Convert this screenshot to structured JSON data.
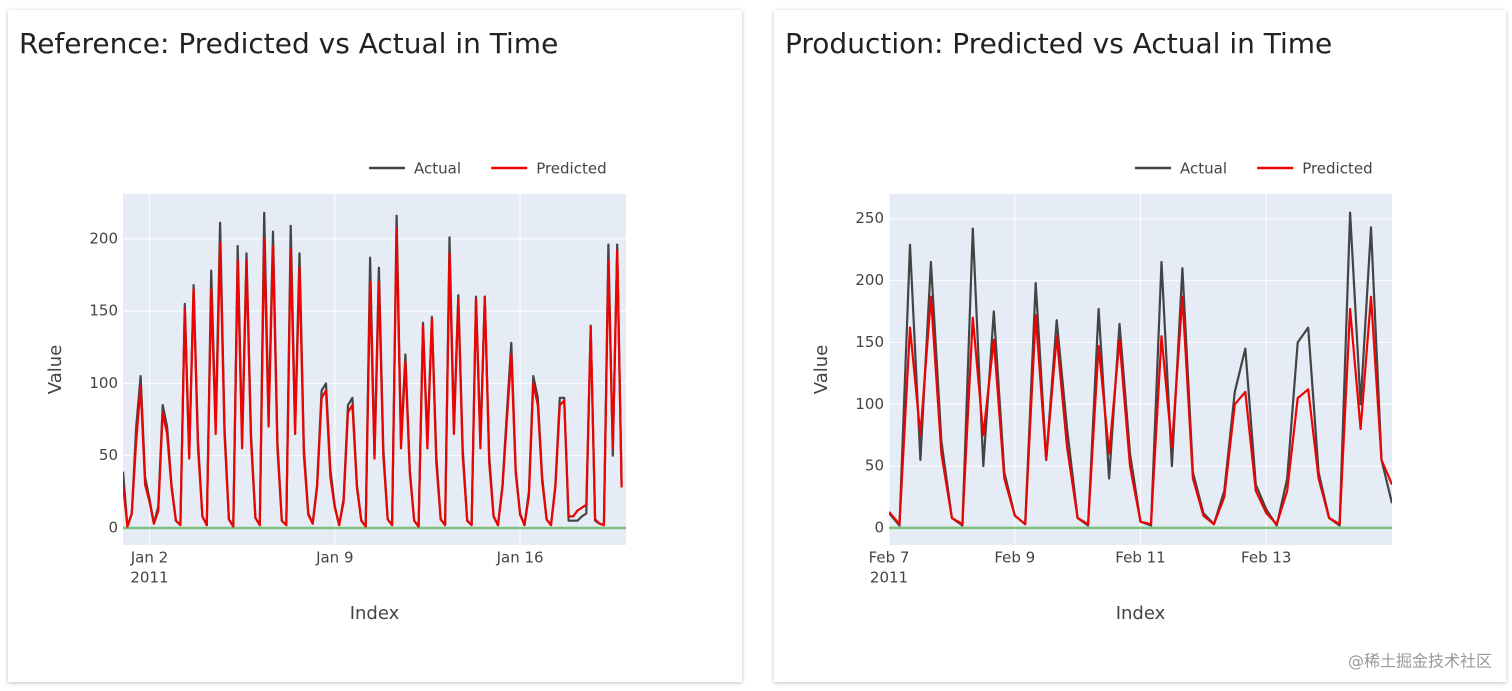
{
  "chart_data": [
    {
      "type": "line",
      "title": "Reference: Predicted vs Actual in Time",
      "x_label": "Index",
      "y_label": "Value",
      "x": [
        "2011-01-01 00:00",
        "2011-01-01 04:00",
        "2011-01-01 08:00",
        "2011-01-01 12:00",
        "2011-01-01 16:00",
        "2011-01-01 20:00",
        "2011-01-02 00:00",
        "2011-01-02 04:00",
        "2011-01-02 08:00",
        "2011-01-02 12:00",
        "2011-01-02 16:00",
        "2011-01-02 20:00",
        "2011-01-03 00:00",
        "2011-01-03 04:00",
        "2011-01-03 08:00",
        "2011-01-03 12:00",
        "2011-01-03 16:00",
        "2011-01-03 20:00",
        "2011-01-04 00:00",
        "2011-01-04 04:00",
        "2011-01-04 08:00",
        "2011-01-04 12:00",
        "2011-01-04 16:00",
        "2011-01-04 20:00",
        "2011-01-05 00:00",
        "2011-01-05 04:00",
        "2011-01-05 08:00",
        "2011-01-05 12:00",
        "2011-01-05 16:00",
        "2011-01-05 20:00",
        "2011-01-06 00:00",
        "2011-01-06 04:00",
        "2011-01-06 08:00",
        "2011-01-06 12:00",
        "2011-01-06 16:00",
        "2011-01-06 20:00",
        "2011-01-07 00:00",
        "2011-01-07 04:00",
        "2011-01-07 08:00",
        "2011-01-07 12:00",
        "2011-01-07 16:00",
        "2011-01-07 20:00",
        "2011-01-08 00:00",
        "2011-01-08 04:00",
        "2011-01-08 08:00",
        "2011-01-08 12:00",
        "2011-01-08 16:00",
        "2011-01-08 20:00",
        "2011-01-09 00:00",
        "2011-01-09 04:00",
        "2011-01-09 08:00",
        "2011-01-09 12:00",
        "2011-01-09 16:00",
        "2011-01-09 20:00",
        "2011-01-10 00:00",
        "2011-01-10 04:00",
        "2011-01-10 08:00",
        "2011-01-10 12:00",
        "2011-01-10 16:00",
        "2011-01-10 20:00",
        "2011-01-11 00:00",
        "2011-01-11 04:00",
        "2011-01-11 08:00",
        "2011-01-11 12:00",
        "2011-01-11 16:00",
        "2011-01-11 20:00",
        "2011-01-12 00:00",
        "2011-01-12 04:00",
        "2011-01-12 08:00",
        "2011-01-12 12:00",
        "2011-01-12 16:00",
        "2011-01-12 20:00",
        "2011-01-13 00:00",
        "2011-01-13 04:00",
        "2011-01-13 08:00",
        "2011-01-13 12:00",
        "2011-01-13 16:00",
        "2011-01-13 20:00",
        "2011-01-14 00:00",
        "2011-01-14 04:00",
        "2011-01-14 08:00",
        "2011-01-14 12:00",
        "2011-01-14 16:00",
        "2011-01-14 20:00",
        "2011-01-15 00:00",
        "2011-01-15 04:00",
        "2011-01-15 08:00",
        "2011-01-15 12:00",
        "2011-01-15 16:00",
        "2011-01-15 20:00",
        "2011-01-16 00:00",
        "2011-01-16 04:00",
        "2011-01-16 08:00",
        "2011-01-16 12:00",
        "2011-01-16 16:00",
        "2011-01-16 20:00",
        "2011-01-17 00:00",
        "2011-01-17 04:00",
        "2011-01-17 08:00",
        "2011-01-17 12:00",
        "2011-01-17 16:00",
        "2011-01-17 20:00",
        "2011-01-18 00:00",
        "2011-01-18 04:00",
        "2011-01-18 08:00",
        "2011-01-18 12:00",
        "2011-01-18 16:00",
        "2011-01-18 20:00",
        "2011-01-19 00:00",
        "2011-01-19 04:00",
        "2011-01-19 08:00",
        "2011-01-19 12:00",
        "2011-01-19 16:00",
        "2011-01-19 20:00"
      ],
      "series": [
        {
          "name": "Actual",
          "color": "#444444",
          "values": [
            39,
            1,
            10,
            70,
            105,
            35,
            20,
            3,
            15,
            85,
            70,
            30,
            5,
            2,
            155,
            50,
            168,
            60,
            8,
            2,
            178,
            70,
            211,
            70,
            6,
            1,
            195,
            60,
            190,
            65,
            7,
            2,
            218,
            75,
            205,
            60,
            5,
            2,
            209,
            70,
            190,
            55,
            10,
            3,
            30,
            95,
            100,
            40,
            15,
            2,
            20,
            85,
            90,
            30,
            5,
            1,
            187,
            50,
            180,
            55,
            6,
            2,
            216,
            60,
            120,
            40,
            5,
            1,
            142,
            60,
            146,
            50,
            6,
            2,
            201,
            70,
            161,
            55,
            5,
            2,
            160,
            60,
            160,
            50,
            8,
            2,
            30,
            80,
            128,
            40,
            10,
            2,
            25,
            105,
            90,
            35,
            6,
            2,
            30,
            90,
            90,
            5,
            5,
            5,
            8,
            10,
            140,
            5,
            3,
            2,
            196,
            50,
            196,
            30
          ]
        },
        {
          "name": "Predicted",
          "color": "#ed0400",
          "values": [
            30,
            1,
            10,
            60,
            98,
            30,
            18,
            3,
            12,
            80,
            65,
            28,
            5,
            2,
            152,
            48,
            165,
            55,
            8,
            2,
            165,
            65,
            197,
            65,
            6,
            1,
            185,
            55,
            185,
            60,
            7,
            2,
            200,
            70,
            195,
            55,
            5,
            2,
            193,
            65,
            180,
            50,
            9,
            3,
            28,
            90,
            95,
            35,
            14,
            2,
            18,
            80,
            85,
            28,
            5,
            1,
            170,
            48,
            170,
            50,
            6,
            2,
            207,
            55,
            115,
            38,
            5,
            1,
            140,
            55,
            145,
            45,
            6,
            2,
            190,
            65,
            158,
            50,
            5,
            2,
            158,
            55,
            160,
            45,
            8,
            2,
            28,
            75,
            120,
            38,
            9,
            2,
            22,
            100,
            85,
            32,
            6,
            2,
            28,
            85,
            88,
            8,
            8,
            12,
            14,
            16,
            139,
            6,
            3,
            2,
            185,
            55,
            192,
            28
          ]
        }
      ],
      "xlim": [
        "2011-01-01 00:00",
        "2011-01-20 00:00"
      ],
      "xticks": [
        {
          "value": "2011-01-02 00:00",
          "label": "Jan 2"
        },
        {
          "value": "2011-01-09 00:00",
          "label": "Jan 9"
        },
        {
          "value": "2011-01-16 00:00",
          "label": "Jan 16"
        }
      ],
      "x_year": "2011",
      "ylim": [
        -11.8,
        231
      ],
      "yticks": [
        0,
        50,
        100,
        150,
        200
      ],
      "grid": true,
      "legend": "top-right",
      "zero_line_color": "#7fbf7f"
    },
    {
      "type": "line",
      "title": "Production: Predicted vs Actual in Time",
      "x_label": "Index",
      "y_label": "Value",
      "x": [
        "2011-02-07 00:00",
        "2011-02-07 04:00",
        "2011-02-07 08:00",
        "2011-02-07 12:00",
        "2011-02-07 16:00",
        "2011-02-07 20:00",
        "2011-02-08 00:00",
        "2011-02-08 04:00",
        "2011-02-08 08:00",
        "2011-02-08 12:00",
        "2011-02-08 16:00",
        "2011-02-08 20:00",
        "2011-02-09 00:00",
        "2011-02-09 04:00",
        "2011-02-09 08:00",
        "2011-02-09 12:00",
        "2011-02-09 16:00",
        "2011-02-09 20:00",
        "2011-02-10 00:00",
        "2011-02-10 04:00",
        "2011-02-10 08:00",
        "2011-02-10 12:00",
        "2011-02-10 16:00",
        "2011-02-10 20:00",
        "2011-02-11 00:00",
        "2011-02-11 04:00",
        "2011-02-11 08:00",
        "2011-02-11 12:00",
        "2011-02-11 16:00",
        "2011-02-11 20:00",
        "2011-02-12 00:00",
        "2011-02-12 04:00",
        "2011-02-12 08:00",
        "2011-02-12 12:00",
        "2011-02-12 16:00",
        "2011-02-12 20:00",
        "2011-02-13 00:00",
        "2011-02-13 04:00",
        "2011-02-13 08:00",
        "2011-02-13 12:00",
        "2011-02-13 16:00",
        "2011-02-13 20:00",
        "2011-02-14 00:00",
        "2011-02-14 04:00",
        "2011-02-14 08:00",
        "2011-02-14 12:00",
        "2011-02-14 16:00",
        "2011-02-14 20:00",
        "2011-02-15 00:00"
      ],
      "series": [
        {
          "name": "Actual",
          "color": "#444444",
          "values": [
            12,
            2,
            229,
            55,
            215,
            70,
            8,
            2,
            242,
            50,
            175,
            45,
            10,
            3,
            198,
            55,
            168,
            80,
            8,
            2,
            177,
            40,
            165,
            60,
            5,
            2,
            215,
            50,
            210,
            45,
            12,
            3,
            30,
            110,
            145,
            35,
            15,
            2,
            40,
            150,
            162,
            45,
            8,
            2,
            255,
            100,
            243,
            55,
            20
          ]
        },
        {
          "name": "Predicted",
          "color": "#ed0400",
          "values": [
            13,
            3,
            162,
            75,
            187,
            60,
            8,
            3,
            170,
            75,
            152,
            40,
            10,
            3,
            172,
            55,
            155,
            65,
            8,
            3,
            147,
            60,
            152,
            50,
            5,
            3,
            155,
            65,
            187,
            40,
            10,
            3,
            25,
            100,
            110,
            30,
            12,
            3,
            30,
            105,
            112,
            40,
            8,
            3,
            177,
            80,
            187,
            55,
            35
          ]
        }
      ],
      "xlim": [
        "2011-02-07 00:00",
        "2011-02-15 00:00"
      ],
      "xticks": [
        {
          "value": "2011-02-07 00:00",
          "label": "Feb 7"
        },
        {
          "value": "2011-02-09 00:00",
          "label": "Feb 9"
        },
        {
          "value": "2011-02-11 00:00",
          "label": "Feb 11"
        },
        {
          "value": "2011-02-13 00:00",
          "label": "Feb 13"
        }
      ],
      "x_year": "2011",
      "ylim": [
        -13.8,
        270
      ],
      "yticks": [
        0,
        50,
        100,
        150,
        200,
        250
      ],
      "grid": true,
      "legend": "top-right",
      "zero_line_color": "#7fbf7f"
    }
  ],
  "watermark": "@稀土掘金技术社区"
}
